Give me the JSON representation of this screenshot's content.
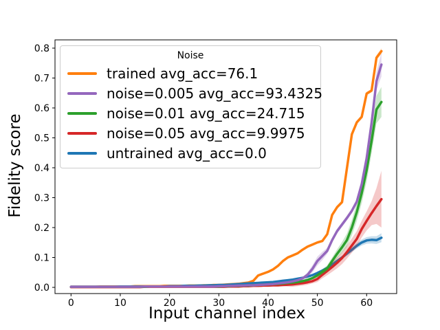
{
  "chart_data": {
    "type": "line",
    "title": "",
    "xlabel": "Input channel index",
    "ylabel": "Fidelity score",
    "xlim": [
      -3.25,
      66.1
    ],
    "ylim": [
      -0.0207,
      0.8276
    ],
    "xticks": [
      "0",
      "10",
      "20",
      "30",
      "40",
      "50",
      "60"
    ],
    "xtick_values": [
      0,
      10,
      20,
      30,
      40,
      50,
      60
    ],
    "yticks": [
      "0.0",
      "0.1",
      "0.2",
      "0.3",
      "0.4",
      "0.5",
      "0.6",
      "0.7",
      "0.8"
    ],
    "ytick_values": [
      0.0,
      0.1,
      0.2,
      0.3,
      0.4,
      0.5,
      0.6,
      0.7,
      0.8
    ],
    "grid": false,
    "legend_title": "Noise",
    "legend_position": "upper left",
    "x": [
      0,
      1,
      2,
      3,
      4,
      5,
      6,
      7,
      8,
      9,
      10,
      11,
      12,
      13,
      14,
      15,
      16,
      17,
      18,
      19,
      20,
      21,
      22,
      23,
      24,
      25,
      26,
      27,
      28,
      29,
      30,
      31,
      32,
      33,
      34,
      35,
      36,
      37,
      38,
      39,
      40,
      41,
      42,
      43,
      44,
      45,
      46,
      47,
      48,
      49,
      50,
      51,
      52,
      53,
      54,
      55,
      56,
      57,
      58,
      59,
      60,
      61,
      62,
      63
    ],
    "draw_order": [
      "trained",
      "untrained",
      "noise-0.05",
      "noise-0.01",
      "noise-0.005"
    ],
    "band_opacity": 0.25,
    "line_width": 3.5,
    "series": [
      {
        "name": "trained",
        "label": "trained avg_acc=76.1",
        "color": "#ff7f0e",
        "values": [
          0.002,
          0.002,
          0.002,
          0.002,
          0.002,
          0.002,
          0.003,
          0.003,
          0.003,
          0.003,
          0.003,
          0.003,
          0.003,
          0.004,
          0.004,
          0.004,
          0.004,
          0.004,
          0.004,
          0.005,
          0.005,
          0.005,
          0.005,
          0.005,
          0.006,
          0.006,
          0.006,
          0.007,
          0.007,
          0.008,
          0.008,
          0.009,
          0.01,
          0.011,
          0.012,
          0.014,
          0.016,
          0.022,
          0.04,
          0.046,
          0.052,
          0.06,
          0.072,
          0.088,
          0.1,
          0.107,
          0.114,
          0.126,
          0.136,
          0.143,
          0.15,
          0.155,
          0.178,
          0.242,
          0.268,
          0.285,
          0.398,
          0.512,
          0.552,
          0.57,
          0.648,
          0.658,
          0.768,
          0.79
        ],
        "band": [
          0.002,
          0.002,
          0.002,
          0.002,
          0.002,
          0.002,
          0.002,
          0.002,
          0.002,
          0.002,
          0.002,
          0.002,
          0.002,
          0.002,
          0.002,
          0.002,
          0.002,
          0.002,
          0.002,
          0.002,
          0.002,
          0.002,
          0.002,
          0.002,
          0.002,
          0.002,
          0.002,
          0.002,
          0.002,
          0.002,
          0.002,
          0.002,
          0.002,
          0.002,
          0.002,
          0.002,
          0.002,
          0.002,
          0.002,
          0.002,
          0.004,
          0.004,
          0.004,
          0.004,
          0.004,
          0.004,
          0.004,
          0.004,
          0.004,
          0.004,
          0.004,
          0.004,
          0.004,
          0.004,
          0.004,
          0.006,
          0.006,
          0.006,
          0.006,
          0.006,
          0.006,
          0.006,
          0.008,
          0.01
        ]
      },
      {
        "name": "noise-0.005",
        "label": "noise=0.005 avg_acc=93.4325",
        "color": "#9467bd",
        "values": [
          0.002,
          0.002,
          0.002,
          0.002,
          0.002,
          0.002,
          0.002,
          0.002,
          0.002,
          0.002,
          0.002,
          0.002,
          0.002,
          0.002,
          0.002,
          0.003,
          0.003,
          0.003,
          0.003,
          0.003,
          0.003,
          0.003,
          0.003,
          0.003,
          0.003,
          0.003,
          0.003,
          0.003,
          0.003,
          0.003,
          0.004,
          0.004,
          0.005,
          0.005,
          0.006,
          0.006,
          0.007,
          0.007,
          0.008,
          0.009,
          0.01,
          0.011,
          0.013,
          0.015,
          0.017,
          0.02,
          0.024,
          0.03,
          0.042,
          0.062,
          0.088,
          0.105,
          0.122,
          0.158,
          0.188,
          0.21,
          0.232,
          0.256,
          0.287,
          0.345,
          0.432,
          0.55,
          0.69,
          0.745
        ],
        "band": [
          0.002,
          0.002,
          0.002,
          0.002,
          0.002,
          0.002,
          0.002,
          0.002,
          0.002,
          0.002,
          0.002,
          0.002,
          0.002,
          0.002,
          0.002,
          0.002,
          0.002,
          0.002,
          0.002,
          0.002,
          0.002,
          0.002,
          0.002,
          0.002,
          0.002,
          0.002,
          0.002,
          0.002,
          0.002,
          0.002,
          0.002,
          0.002,
          0.002,
          0.002,
          0.002,
          0.002,
          0.002,
          0.002,
          0.002,
          0.002,
          0.002,
          0.002,
          0.002,
          0.002,
          0.002,
          0.002,
          0.004,
          0.004,
          0.008,
          0.012,
          0.015,
          0.014,
          0.01,
          0.008,
          0.008,
          0.008,
          0.008,
          0.008,
          0.008,
          0.01,
          0.015,
          0.02,
          0.03,
          0.04
        ]
      },
      {
        "name": "noise-0.01",
        "label": "noise=0.01 avg_acc=24.715",
        "color": "#2ca02c",
        "values": [
          0.002,
          0.002,
          0.002,
          0.002,
          0.002,
          0.002,
          0.002,
          0.002,
          0.002,
          0.002,
          0.002,
          0.002,
          0.002,
          0.002,
          0.002,
          0.002,
          0.003,
          0.003,
          0.003,
          0.003,
          0.003,
          0.003,
          0.003,
          0.003,
          0.003,
          0.003,
          0.003,
          0.003,
          0.003,
          0.003,
          0.003,
          0.004,
          0.004,
          0.005,
          0.005,
          0.006,
          0.006,
          0.007,
          0.008,
          0.009,
          0.01,
          0.011,
          0.012,
          0.013,
          0.015,
          0.016,
          0.018,
          0.021,
          0.025,
          0.031,
          0.04,
          0.052,
          0.064,
          0.088,
          0.112,
          0.134,
          0.158,
          0.2,
          0.252,
          0.315,
          0.392,
          0.49,
          0.595,
          0.62
        ],
        "band": [
          0.002,
          0.002,
          0.002,
          0.002,
          0.002,
          0.002,
          0.002,
          0.002,
          0.002,
          0.002,
          0.002,
          0.002,
          0.002,
          0.002,
          0.002,
          0.002,
          0.002,
          0.002,
          0.002,
          0.002,
          0.002,
          0.002,
          0.002,
          0.002,
          0.002,
          0.002,
          0.002,
          0.002,
          0.002,
          0.002,
          0.002,
          0.002,
          0.002,
          0.002,
          0.002,
          0.002,
          0.002,
          0.002,
          0.002,
          0.002,
          0.002,
          0.002,
          0.002,
          0.002,
          0.002,
          0.002,
          0.002,
          0.002,
          0.002,
          0.004,
          0.006,
          0.008,
          0.01,
          0.012,
          0.015,
          0.018,
          0.022,
          0.026,
          0.03,
          0.034,
          0.038,
          0.042,
          0.046,
          0.05
        ]
      },
      {
        "name": "noise-0.05",
        "label": "noise=0.05 avg_acc=9.9975",
        "color": "#d62728",
        "values": [
          0.001,
          0.001,
          0.001,
          0.001,
          0.001,
          0.001,
          0.001,
          0.001,
          0.001,
          0.001,
          0.001,
          0.001,
          0.001,
          0.001,
          0.001,
          0.002,
          0.002,
          0.002,
          0.002,
          0.002,
          0.002,
          0.002,
          0.002,
          0.002,
          0.002,
          0.002,
          0.002,
          0.002,
          0.002,
          0.002,
          0.002,
          0.002,
          0.003,
          0.003,
          0.003,
          0.004,
          0.004,
          0.005,
          0.005,
          0.006,
          0.006,
          0.007,
          0.007,
          0.008,
          0.009,
          0.01,
          0.012,
          0.014,
          0.017,
          0.021,
          0.028,
          0.042,
          0.055,
          0.068,
          0.082,
          0.098,
          0.118,
          0.14,
          0.162,
          0.195,
          0.222,
          0.248,
          0.272,
          0.295
        ],
        "band": [
          0.002,
          0.002,
          0.002,
          0.002,
          0.002,
          0.002,
          0.002,
          0.002,
          0.002,
          0.002,
          0.002,
          0.002,
          0.002,
          0.002,
          0.002,
          0.002,
          0.002,
          0.002,
          0.002,
          0.002,
          0.002,
          0.002,
          0.002,
          0.002,
          0.002,
          0.002,
          0.002,
          0.002,
          0.002,
          0.002,
          0.002,
          0.002,
          0.002,
          0.002,
          0.002,
          0.002,
          0.002,
          0.002,
          0.002,
          0.002,
          0.002,
          0.002,
          0.002,
          0.004,
          0.006,
          0.008,
          0.008,
          0.008,
          0.008,
          0.008,
          0.01,
          0.012,
          0.014,
          0.016,
          0.018,
          0.02,
          0.022,
          0.024,
          0.026,
          0.028,
          0.032,
          0.04,
          0.06,
          0.095
        ]
      },
      {
        "name": "untrained",
        "label": "untrained avg_acc=0.0",
        "color": "#1f77b4",
        "values": [
          0.002,
          0.002,
          0.002,
          0.002,
          0.002,
          0.002,
          0.002,
          0.002,
          0.002,
          0.002,
          0.003,
          0.003,
          0.003,
          0.003,
          0.003,
          0.003,
          0.003,
          0.003,
          0.003,
          0.003,
          0.004,
          0.004,
          0.004,
          0.005,
          0.005,
          0.005,
          0.006,
          0.006,
          0.007,
          0.007,
          0.008,
          0.008,
          0.009,
          0.01,
          0.011,
          0.012,
          0.013,
          0.014,
          0.015,
          0.016,
          0.017,
          0.018,
          0.02,
          0.022,
          0.024,
          0.026,
          0.029,
          0.032,
          0.036,
          0.041,
          0.048,
          0.056,
          0.065,
          0.076,
          0.088,
          0.1,
          0.113,
          0.126,
          0.139,
          0.15,
          0.157,
          0.159,
          0.158,
          0.166
        ],
        "band": [
          0.002,
          0.002,
          0.002,
          0.002,
          0.002,
          0.002,
          0.002,
          0.002,
          0.002,
          0.002,
          0.002,
          0.002,
          0.002,
          0.002,
          0.002,
          0.002,
          0.002,
          0.002,
          0.002,
          0.002,
          0.002,
          0.002,
          0.002,
          0.002,
          0.002,
          0.002,
          0.002,
          0.002,
          0.002,
          0.002,
          0.002,
          0.002,
          0.002,
          0.002,
          0.002,
          0.002,
          0.002,
          0.002,
          0.002,
          0.002,
          0.002,
          0.002,
          0.002,
          0.002,
          0.002,
          0.002,
          0.002,
          0.002,
          0.002,
          0.002,
          0.002,
          0.005,
          0.005,
          0.005,
          0.005,
          0.005,
          0.007,
          0.008,
          0.009,
          0.01,
          0.011,
          0.012,
          0.013,
          0.015
        ]
      }
    ]
  },
  "colors": {
    "axes": "#000000",
    "text": "#000000",
    "legend_border": "#cccccc",
    "background": "#ffffff"
  }
}
